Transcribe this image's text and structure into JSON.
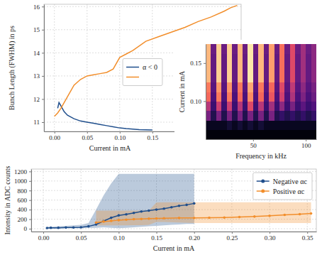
{
  "chart_data": [
    {
      "type": "line",
      "y_label": "Bunch Length (FWHM) in ps",
      "x_label": "Current in mA",
      "xlim": [
        -0.016,
        0.286
      ],
      "xticks": [
        {
          "value": 0,
          "label": "0.00"
        },
        {
          "value": 0.05,
          "label": "0.05"
        },
        {
          "value": 0.1,
          "label": "0.10"
        },
        {
          "value": 0.15,
          "label": "0.15"
        }
      ],
      "ylim": [
        10.6,
        16.1
      ],
      "yticks": [
        11,
        12,
        13,
        14,
        15,
        16
      ],
      "grid": true,
      "legend": "center",
      "series": [
        {
          "name": "α < 0",
          "color": "#1f4e8c",
          "x": [
            0.005,
            0.007,
            0.01,
            0.015,
            0.02,
            0.03,
            0.04,
            0.05,
            0.06,
            0.07,
            0.08,
            0.09,
            0.1,
            0.11,
            0.12,
            0.13,
            0.14,
            0.15
          ],
          "values": [
            11.6,
            11.85,
            11.7,
            11.45,
            11.3,
            11.15,
            11.05,
            11.0,
            10.95,
            10.9,
            10.85,
            10.8,
            10.75,
            10.72,
            10.7,
            10.68,
            10.67,
            10.66
          ]
        },
        {
          "color": "#f28e2b",
          "x": [
            0.0,
            0.005,
            0.01,
            0.02,
            0.03,
            0.04,
            0.05,
            0.06,
            0.07,
            0.08,
            0.09,
            0.1,
            0.11,
            0.12,
            0.14,
            0.16,
            0.18,
            0.2,
            0.22,
            0.24,
            0.26,
            0.27,
            0.28
          ],
          "values": [
            11.25,
            11.4,
            11.6,
            12.1,
            12.6,
            12.85,
            13.0,
            13.05,
            13.1,
            13.15,
            13.3,
            13.8,
            13.95,
            14.1,
            14.5,
            14.7,
            14.9,
            15.1,
            15.35,
            15.55,
            15.8,
            15.95,
            16.05
          ]
        }
      ]
    },
    {
      "type": "heatmap",
      "x_label": "Frequency in kHz",
      "y_label": "Current in mA",
      "xlim": [
        5,
        110
      ],
      "xticks": [
        50,
        100
      ],
      "ylim": [
        0.05,
        0.175
      ],
      "yticks": [
        {
          "value": 0.1,
          "label": "0.10"
        },
        {
          "value": 0.15,
          "label": "0.15"
        }
      ],
      "color": "magma",
      "color_range": [
        0,
        1
      ],
      "x_bins": [
        5,
        10,
        15,
        20,
        25,
        30,
        35,
        40,
        45,
        50,
        55,
        60,
        65,
        70,
        75,
        80,
        85,
        90,
        95,
        100,
        105,
        110
      ],
      "y_bins": [
        0.05,
        0.0625,
        0.075,
        0.0875,
        0.1,
        0.1125,
        0.125,
        0.1375,
        0.15,
        0.1625,
        0.175
      ],
      "cells": [
        [
          0.02,
          0.02,
          0.02,
          0.02,
          0.02,
          0.02,
          0.02,
          0.02,
          0.02,
          0.02,
          0.02,
          0.02,
          0.02,
          0.02,
          0.02,
          0.02,
          0.02,
          0.02,
          0.02,
          0.02,
          0.02
        ],
        [
          0.06,
          0.06,
          0.06,
          0.06,
          0.1,
          0.06,
          0.1,
          0.06,
          0.1,
          0.06,
          0.1,
          0.06,
          0.06,
          0.06,
          0.06,
          0.06,
          0.06,
          0.06,
          0.06,
          0.06,
          0.06
        ],
        [
          0.35,
          0.14,
          0.35,
          0.14,
          0.35,
          0.14,
          0.35,
          0.14,
          0.35,
          0.14,
          0.35,
          0.14,
          0.35,
          0.14,
          0.18,
          0.14,
          0.18,
          0.14,
          0.18,
          0.14,
          0.18
        ],
        [
          0.5,
          0.2,
          0.55,
          0.2,
          0.55,
          0.2,
          0.5,
          0.2,
          0.6,
          0.2,
          0.5,
          0.2,
          0.45,
          0.2,
          0.4,
          0.2,
          0.35,
          0.2,
          0.28,
          0.2,
          0.25
        ],
        [
          0.68,
          0.24,
          0.72,
          0.24,
          0.72,
          0.24,
          0.68,
          0.24,
          0.76,
          0.24,
          0.68,
          0.24,
          0.64,
          0.24,
          0.56,
          0.24,
          0.48,
          0.24,
          0.36,
          0.24,
          0.32
        ],
        [
          0.72,
          0.27,
          0.78,
          0.27,
          0.78,
          0.27,
          0.72,
          0.27,
          0.82,
          0.27,
          0.72,
          0.27,
          0.68,
          0.27,
          0.6,
          0.27,
          0.52,
          0.27,
          0.4,
          0.27,
          0.35
        ],
        [
          0.85,
          0.3,
          0.9,
          0.3,
          0.9,
          0.3,
          0.85,
          0.3,
          0.95,
          0.3,
          0.85,
          0.3,
          0.8,
          0.3,
          0.7,
          0.3,
          0.6,
          0.3,
          0.45,
          0.3,
          0.4
        ],
        [
          0.85,
          0.3,
          0.9,
          0.3,
          0.9,
          0.3,
          0.85,
          0.3,
          0.95,
          0.3,
          0.85,
          0.3,
          0.8,
          0.3,
          0.7,
          0.3,
          0.6,
          0.3,
          0.45,
          0.3,
          0.4
        ],
        [
          0.85,
          0.3,
          0.9,
          0.3,
          0.9,
          0.3,
          0.85,
          0.3,
          0.95,
          0.3,
          0.85,
          0.3,
          0.8,
          0.3,
          0.7,
          0.3,
          0.6,
          0.3,
          0.45,
          0.3,
          0.4
        ],
        [
          0.85,
          0.32,
          0.9,
          0.32,
          0.9,
          0.32,
          0.85,
          0.32,
          0.95,
          0.32,
          0.85,
          0.32,
          0.8,
          0.32,
          0.7,
          0.32,
          0.6,
          0.32,
          0.45,
          0.32,
          0.4
        ]
      ]
    },
    {
      "type": "line",
      "y_label": "Intensity in ADC counts",
      "x_label": "Current in mA",
      "xlim": [
        -0.016,
        0.362
      ],
      "xticks": [
        {
          "value": 0,
          "label": "0.00"
        },
        {
          "value": 0.05,
          "label": "0.05"
        },
        {
          "value": 0.1,
          "label": "0.10"
        },
        {
          "value": 0.15,
          "label": "0.15"
        },
        {
          "value": 0.2,
          "label": "0.20"
        },
        {
          "value": 0.25,
          "label": "0.25"
        },
        {
          "value": 0.3,
          "label": "0.30"
        },
        {
          "value": 0.35,
          "label": "0.35"
        }
      ],
      "ylim": [
        -60,
        1250
      ],
      "yticks": [
        0,
        200,
        400,
        600,
        800,
        1000,
        1200
      ],
      "grid": true,
      "legend": "upper right",
      "marker": "circle",
      "series": [
        {
          "name": "Negative αc",
          "color": "#1f4e8c",
          "x": [
            0.005,
            0.01,
            0.02,
            0.03,
            0.04,
            0.05,
            0.06,
            0.07,
            0.08,
            0.09,
            0.1,
            0.11,
            0.12,
            0.13,
            0.14,
            0.15,
            0.16,
            0.17,
            0.18,
            0.19,
            0.2
          ],
          "values": [
            15,
            20,
            20,
            25,
            25,
            30,
            50,
            90,
            160,
            230,
            280,
            300,
            330,
            360,
            380,
            400,
            420,
            450,
            480,
            500,
            530
          ],
          "lower": [
            5,
            5,
            5,
            10,
            10,
            10,
            15,
            20,
            30,
            20,
            10,
            20,
            30,
            40,
            50,
            60,
            70,
            80,
            90,
            100,
            100
          ],
          "upper": [
            40,
            40,
            50,
            60,
            70,
            80,
            120,
            400,
            700,
            950,
            1150,
            1150,
            1150,
            1150,
            1150,
            1150,
            1150,
            1150,
            1150,
            1150,
            1150
          ]
        },
        {
          "name": "Positive αc",
          "color": "#f28e2b",
          "x": [
            0.07,
            0.08,
            0.09,
            0.1,
            0.11,
            0.12,
            0.13,
            0.14,
            0.15,
            0.16,
            0.18,
            0.2,
            0.22,
            0.24,
            0.26,
            0.28,
            0.3,
            0.32,
            0.34,
            0.355
          ],
          "values": [
            130,
            150,
            165,
            180,
            190,
            200,
            205,
            210,
            215,
            220,
            225,
            225,
            230,
            235,
            245,
            255,
            270,
            290,
            305,
            320
          ],
          "lower": [
            70,
            70,
            70,
            70,
            70,
            75,
            75,
            80,
            140,
            140,
            130,
            120,
            120,
            120,
            120,
            120,
            120,
            120,
            120,
            120
          ],
          "upper": [
            380,
            380,
            380,
            380,
            380,
            380,
            380,
            380,
            550,
            555,
            555,
            555,
            555,
            555,
            555,
            555,
            555,
            555,
            555,
            555
          ]
        }
      ]
    }
  ]
}
